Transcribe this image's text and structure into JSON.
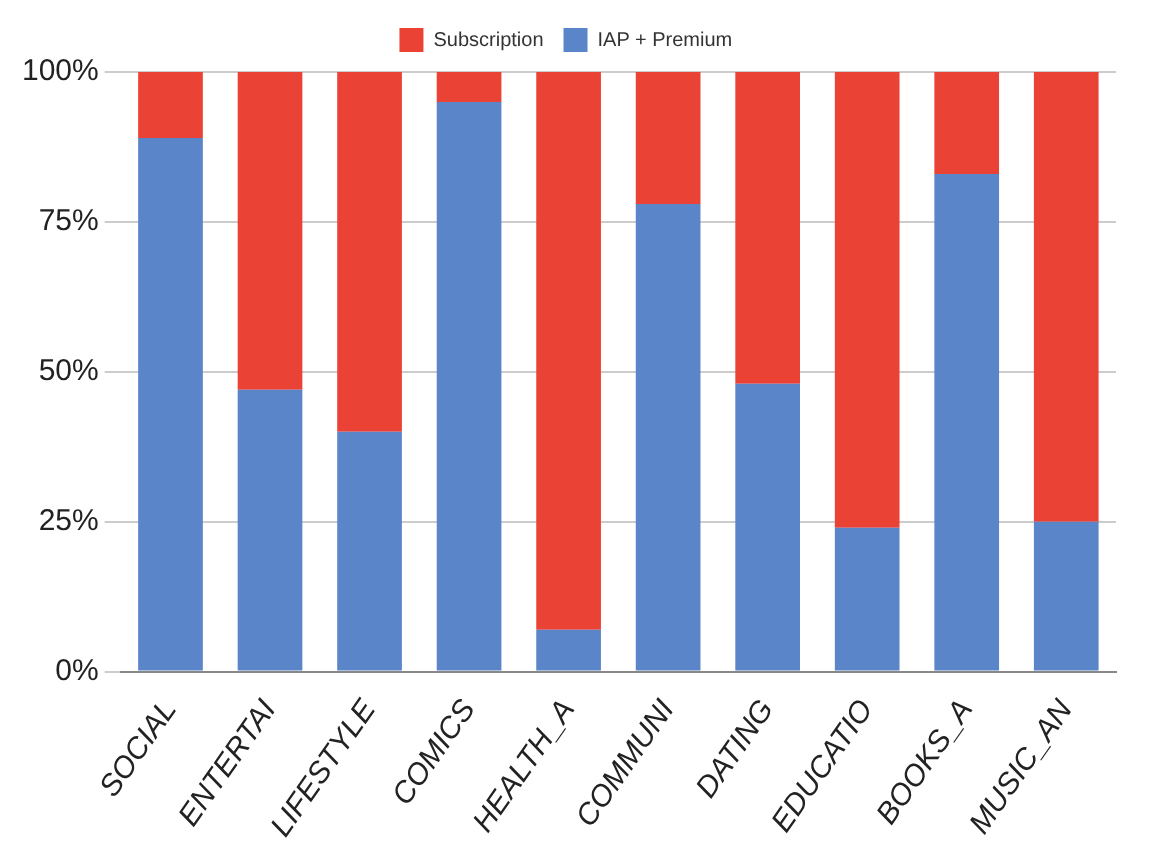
{
  "chart_data": {
    "type": "bar",
    "stacked": true,
    "categories": [
      "SOCIAL",
      "ENTERTAI",
      "LIFESTYLE",
      "COMICS",
      "HEALTH_A",
      "COMMUNI",
      "DATING",
      "EDUCATIO",
      "BOOKS_A",
      "MUSIC_AN"
    ],
    "series": [
      {
        "name": "IAP + Premium",
        "color": "#5b85c9",
        "values": [
          89,
          47,
          40,
          95,
          7,
          78,
          48,
          24,
          83,
          25
        ]
      },
      {
        "name": "Subscription",
        "color": "#ea4335",
        "values": [
          11,
          53,
          60,
          5,
          93,
          22,
          52,
          76,
          17,
          75
        ]
      }
    ],
    "ylim": [
      0,
      100
    ],
    "yticks": [
      {
        "value": 0,
        "label": "0%"
      },
      {
        "value": 25,
        "label": "25%"
      },
      {
        "value": 50,
        "label": "50%"
      },
      {
        "value": 75,
        "label": "75%"
      },
      {
        "value": 100,
        "label": "100%"
      }
    ],
    "grid": "y",
    "legend": "top"
  }
}
